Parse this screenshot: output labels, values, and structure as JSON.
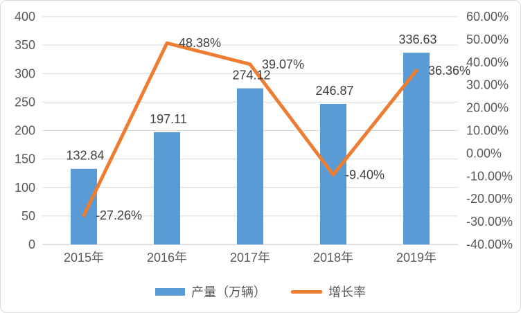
{
  "chart_data": {
    "type": "bar+line combo",
    "title": "",
    "categories": [
      "2015年",
      "2016年",
      "2017年",
      "2018年",
      "2019年"
    ],
    "series": [
      {
        "name": "产量（万辆）",
        "type": "bar",
        "axis": "left",
        "values": [
          132.84,
          197.11,
          274.12,
          246.87,
          336.63
        ],
        "labels": [
          "132.84",
          "197.11",
          "274.12",
          "246.87",
          "336.63"
        ]
      },
      {
        "name": "增长率",
        "type": "line",
        "axis": "right",
        "values": [
          -27.26,
          48.38,
          39.07,
          -9.4,
          36.36
        ],
        "labels": [
          "-27.26%",
          "48.38%",
          "39.07%",
          "-9.40%",
          "36.36%"
        ]
      }
    ],
    "left_axis": {
      "min": 0,
      "max": 400,
      "step": 50,
      "ticks": [
        "0",
        "50",
        "100",
        "150",
        "200",
        "250",
        "300",
        "350",
        "400"
      ]
    },
    "right_axis": {
      "min": -40,
      "max": 60,
      "step": 10,
      "ticks_top_to_bottom": [
        "60.00%",
        "50.00%",
        "40.00%",
        "30.00%",
        "20.00%",
        "10.00%",
        "0.00%",
        "-10.00%",
        "-20.00%",
        "-30.00%",
        "-40.00%"
      ]
    },
    "grid": true,
    "legend_position": "bottom",
    "legend": [
      {
        "label": "产量（万辆）",
        "swatch": "bar"
      },
      {
        "label": "增长率",
        "swatch": "line"
      }
    ],
    "colors": {
      "bar": "#5B9BD5",
      "line": "#ED7D31",
      "axis_text": "#595959",
      "data_label_text": "#404040",
      "gridline": "#D9D9D9",
      "axis_line": "#BFBFBF",
      "background": "#FFFFFF",
      "frame_border": "#D9D9D9"
    }
  }
}
